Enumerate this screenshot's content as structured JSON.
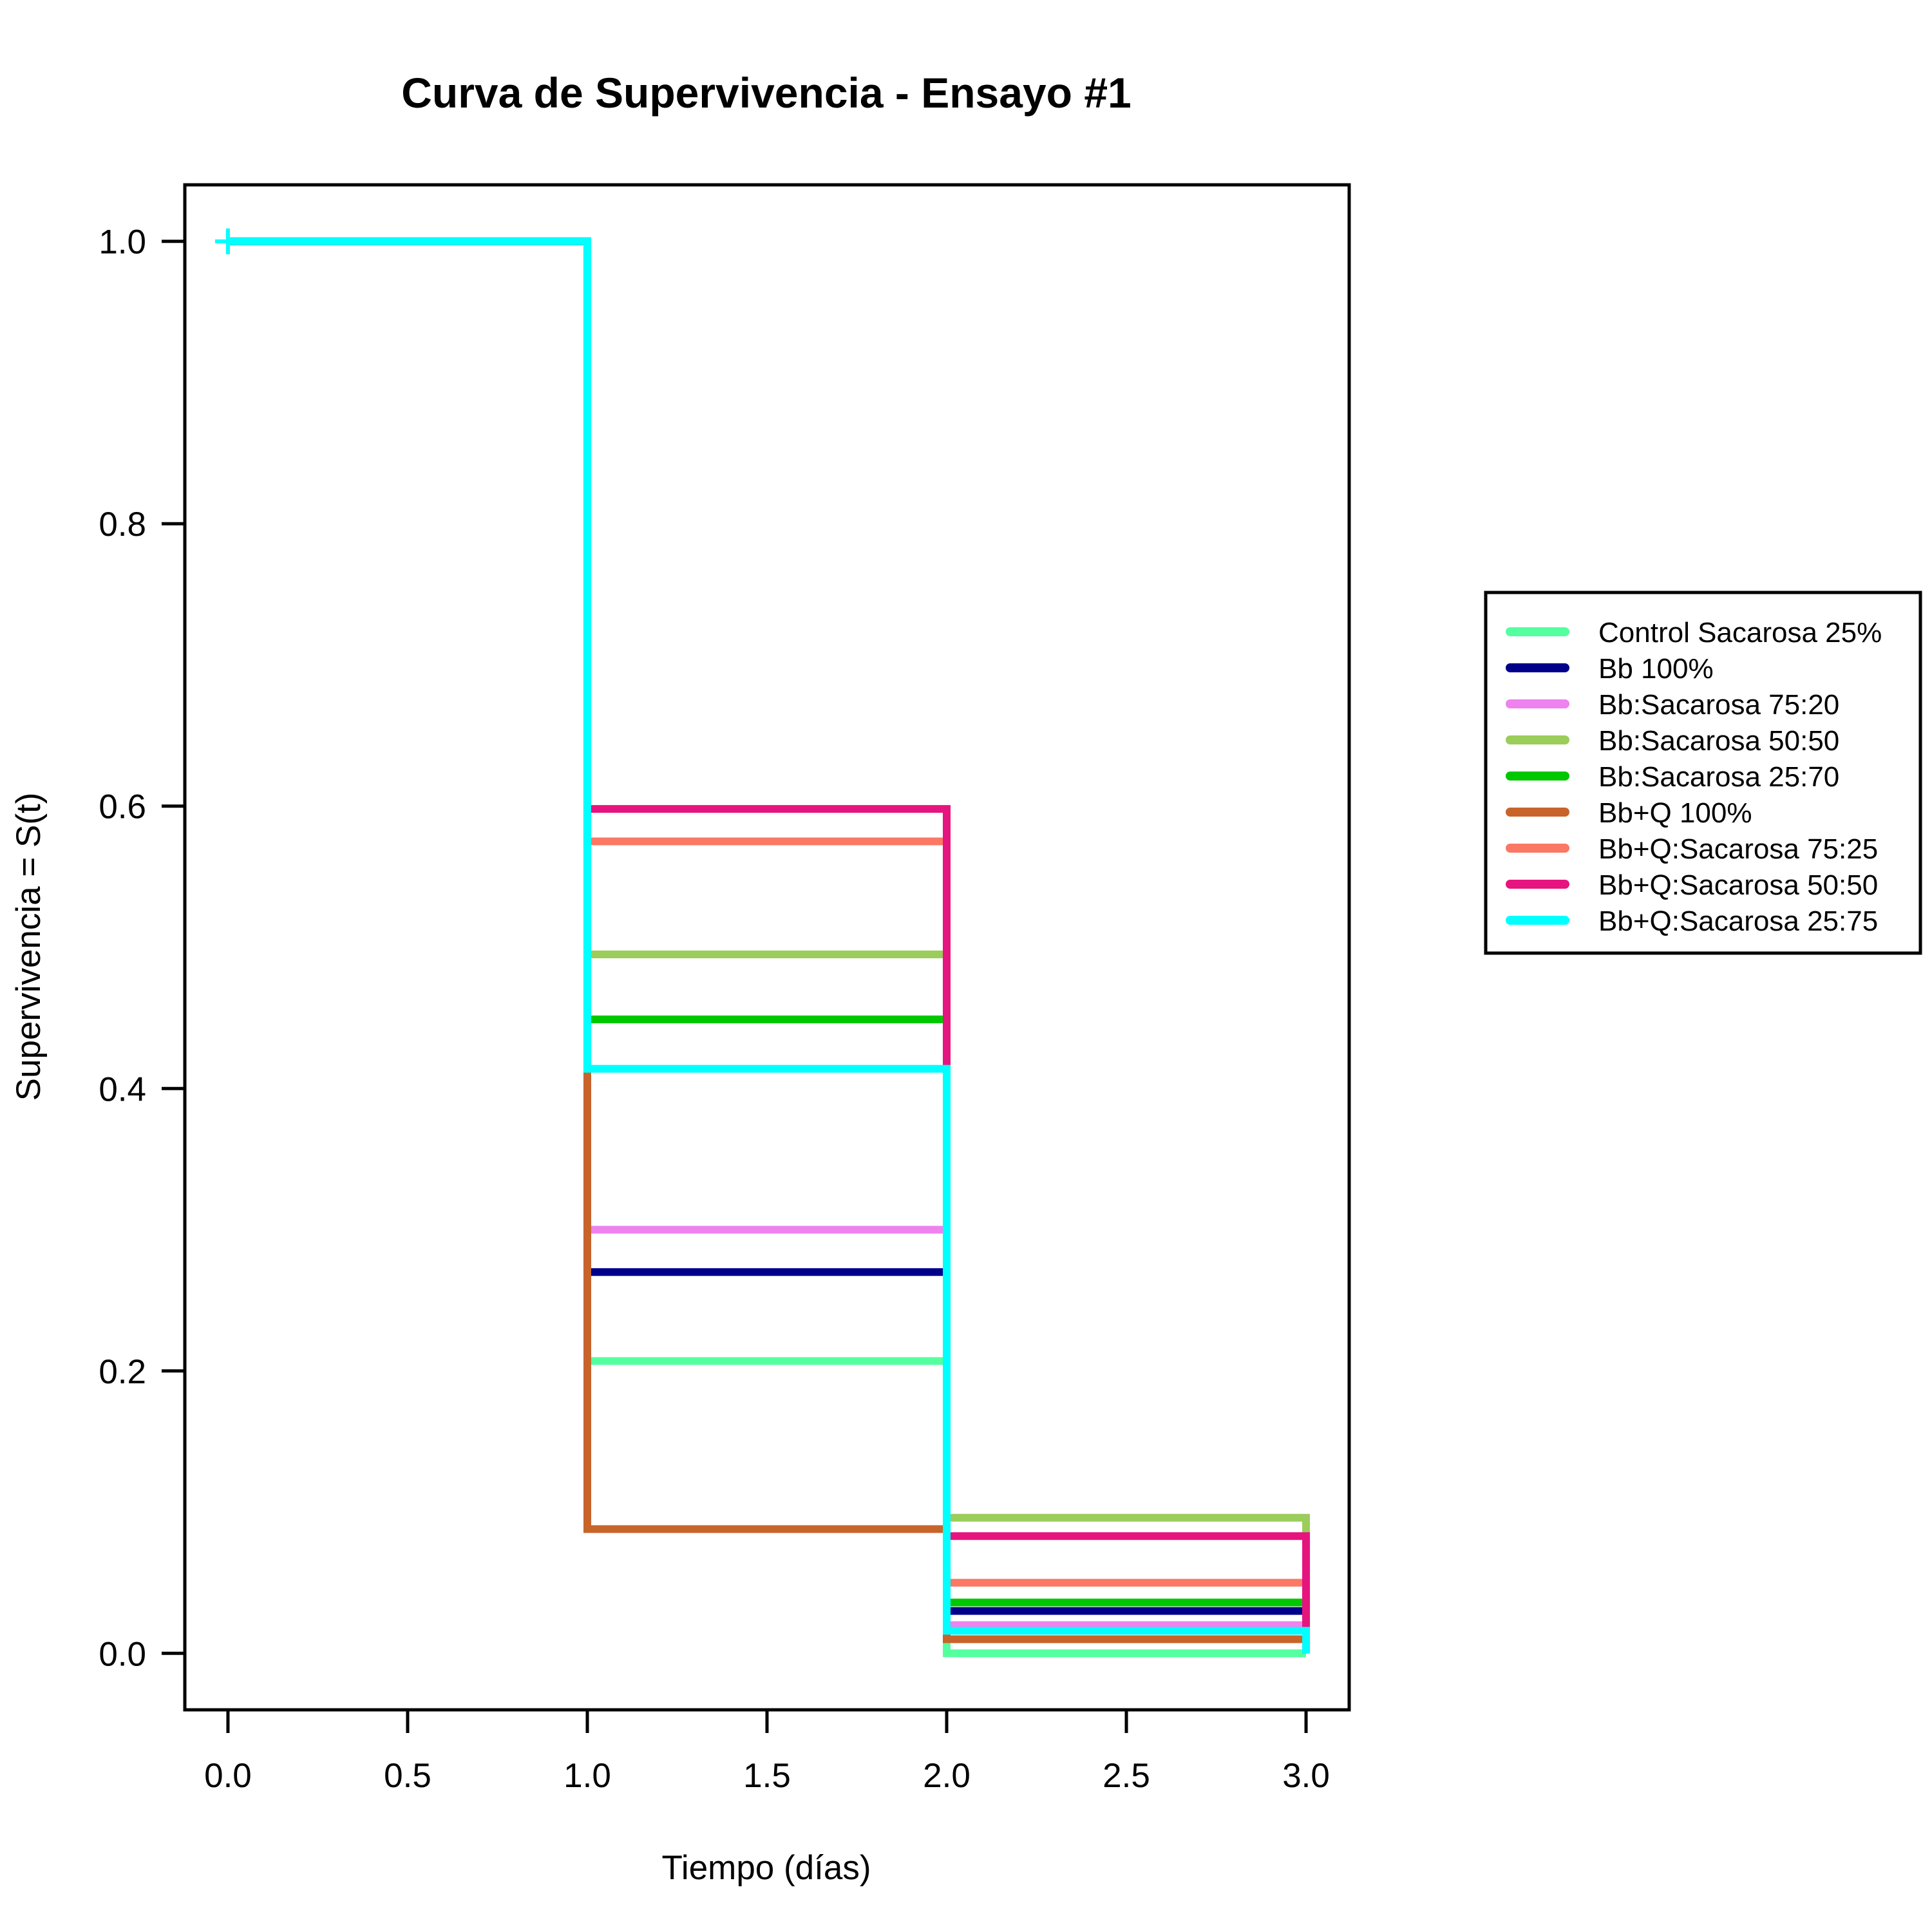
{
  "chart_data": {
    "type": "line",
    "step": true,
    "title": "Curva de Supervivencia - Ensayo #1",
    "xlabel": "Tiempo (días)",
    "ylabel": "Supervivencia = S(t)",
    "xlim": [
      -0.12,
      3.12
    ],
    "ylim": [
      -0.04,
      1.04
    ],
    "x_ticks": [
      0.0,
      0.5,
      1.0,
      1.5,
      2.0,
      2.5,
      3.0
    ],
    "x_tick_labels": [
      "0.0",
      "0.5",
      "1.0",
      "1.5",
      "2.0",
      "2.5",
      "3.0"
    ],
    "y_ticks": [
      0.0,
      0.2,
      0.4,
      0.6,
      0.8,
      1.0
    ],
    "y_tick_labels": [
      "0.0",
      "0.2",
      "0.4",
      "0.6",
      "0.8",
      "1.0"
    ],
    "grid": false,
    "legend_position": "right",
    "x": [
      0,
      1,
      2,
      3
    ],
    "series": [
      {
        "name": "Control  Sacarosa 25%",
        "color": "#54FF9F",
        "values": [
          1.0,
          0.207,
          0.0,
          0.0
        ]
      },
      {
        "name": "Bb 100%",
        "color": "#00008B",
        "values": [
          1.0,
          0.27,
          0.03,
          0.03
        ]
      },
      {
        "name": "Bb:Sacarosa 75:20",
        "color": "#EE82EE",
        "values": [
          1.0,
          0.3,
          0.02,
          0.02
        ]
      },
      {
        "name": "Bb:Sacarosa 50:50",
        "color": "#9ACD5A",
        "values": [
          1.0,
          0.495,
          0.096,
          0.0
        ]
      },
      {
        "name": "Bb:Sacarosa 25:70",
        "color": "#00C800",
        "values": [
          1.0,
          0.449,
          0.036,
          0.0
        ]
      },
      {
        "name": "Bb+Q 100%",
        "color": "#C8642A",
        "values": [
          1.0,
          0.088,
          0.01,
          0.01
        ]
      },
      {
        "name": "Bb+Q:Sacarosa 75:25",
        "color": "#FA7864",
        "values": [
          1.0,
          0.575,
          0.05,
          0.0
        ]
      },
      {
        "name": "Bb+Q:Sacarosa 50:50",
        "color": "#E6147F",
        "values": [
          1.0,
          0.598,
          0.083,
          0.0
        ]
      },
      {
        "name": "Bb+Q:Sacarosa 25:75",
        "color": "#00FFFF",
        "values": [
          1.0,
          0.414,
          0.016,
          0.0
        ]
      }
    ]
  }
}
